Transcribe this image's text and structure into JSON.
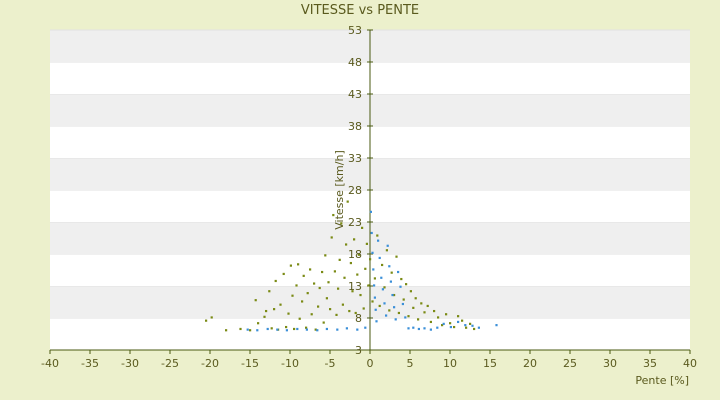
{
  "chart_data": {
    "type": "scatter",
    "title": "VITESSE vs PENTE",
    "xlabel": "Pente [%]",
    "ylabel": "Vitesse [km/h]",
    "xlim": [
      -40,
      40
    ],
    "ylim": [
      3,
      53
    ],
    "xticks": [
      "-40",
      "-35",
      "-30",
      "-25",
      "-20",
      "-15",
      "-10",
      "-5",
      "0",
      "5",
      "10",
      "15",
      "20",
      "25",
      "30",
      "35",
      "40"
    ],
    "yticks": [
      "3",
      "8",
      "13",
      "18",
      "23",
      "28",
      "33",
      "38",
      "43",
      "48",
      "53"
    ],
    "grid": "alternating horizontal bands",
    "colors": {
      "background": "#ecf0cc",
      "plot": "#ffffff",
      "band": "#efefef",
      "axis": "#4a5a10",
      "text": "#5a5a1e",
      "series_a": "#7a8a14",
      "series_b": "#3b8fd8"
    },
    "series": [
      {
        "color": "#7a8a14",
        "points": [
          [
            -20.5,
            7.6
          ],
          [
            -19.8,
            8.1
          ],
          [
            -18,
            6.1
          ],
          [
            -16.2,
            6.3
          ],
          [
            -15,
            6.1
          ],
          [
            -14.3,
            10.8
          ],
          [
            -14,
            7.2
          ],
          [
            -13.2,
            8.2
          ],
          [
            -13,
            9.1
          ],
          [
            -12.6,
            12.2
          ],
          [
            -12.3,
            6.4
          ],
          [
            -12,
            9.4
          ],
          [
            -11.8,
            13.8
          ],
          [
            -11.5,
            6.2
          ],
          [
            -11.2,
            10.1
          ],
          [
            -10.8,
            14.9
          ],
          [
            -10.5,
            6.6
          ],
          [
            -10.2,
            8.7
          ],
          [
            -9.9,
            16.2
          ],
          [
            -9.7,
            11.5
          ],
          [
            -9.5,
            6.3
          ],
          [
            -9.2,
            13.1
          ],
          [
            -9,
            16.4
          ],
          [
            -8.8,
            7.9
          ],
          [
            -8.5,
            10.6
          ],
          [
            -8.3,
            14.6
          ],
          [
            -8,
            6.5
          ],
          [
            -7.8,
            11.9
          ],
          [
            -7.5,
            15.6
          ],
          [
            -7.3,
            8.6
          ],
          [
            -7,
            13.4
          ],
          [
            -6.8,
            6.2
          ],
          [
            -6.5,
            9.8
          ],
          [
            -6.3,
            12.7
          ],
          [
            -6,
            15.2
          ],
          [
            -5.8,
            7.3
          ],
          [
            -5.6,
            17.8
          ],
          [
            -5.4,
            11.1
          ],
          [
            -5.2,
            13.6
          ],
          [
            -5,
            9.4
          ],
          [
            -4.8,
            20.6
          ],
          [
            -4.6,
            24.1
          ],
          [
            -4.4,
            15.3
          ],
          [
            -4.2,
            8.5
          ],
          [
            -4,
            12.6
          ],
          [
            -3.8,
            17.1
          ],
          [
            -3.6,
            22.8
          ],
          [
            -3.4,
            10.1
          ],
          [
            -3.2,
            14.3
          ],
          [
            -3,
            19.5
          ],
          [
            -2.8,
            26.2
          ],
          [
            -2.6,
            9.1
          ],
          [
            -2.4,
            16.6
          ],
          [
            -2.2,
            12.2
          ],
          [
            -2,
            20.3
          ],
          [
            -1.8,
            8.8
          ],
          [
            -1.6,
            14.8
          ],
          [
            -1.4,
            17.9
          ],
          [
            -1.2,
            11.6
          ],
          [
            -1,
            22.1
          ],
          [
            -0.8,
            9.5
          ],
          [
            -0.6,
            15.7
          ],
          [
            -0.4,
            19.6
          ],
          [
            -0.2,
            13.1
          ],
          [
            0,
            17.2
          ],
          [
            0.3,
            10.6
          ],
          [
            0.6,
            14.2
          ],
          [
            0.9,
            20.9
          ],
          [
            1.2,
            9.9
          ],
          [
            1.5,
            16.3
          ],
          [
            1.8,
            12.8
          ],
          [
            2.1,
            18.6
          ],
          [
            2.4,
            9.2
          ],
          [
            2.7,
            15.1
          ],
          [
            3,
            11.6
          ],
          [
            3.3,
            17.6
          ],
          [
            3.6,
            8.8
          ],
          [
            3.9,
            14.1
          ],
          [
            4.2,
            10.9
          ],
          [
            4.5,
            13.3
          ],
          [
            4.8,
            8.3
          ],
          [
            5.1,
            12.2
          ],
          [
            5.4,
            9.6
          ],
          [
            5.7,
            11.1
          ],
          [
            6,
            7.8
          ],
          [
            6.4,
            10.3
          ],
          [
            6.8,
            8.9
          ],
          [
            7.2,
            9.9
          ],
          [
            7.6,
            7.4
          ],
          [
            8,
            9.1
          ],
          [
            8.5,
            8.1
          ],
          [
            9,
            6.9
          ],
          [
            9.5,
            8.6
          ],
          [
            10,
            7.2
          ],
          [
            10.5,
            6.6
          ],
          [
            11,
            8.3
          ],
          [
            11.5,
            7.6
          ],
          [
            12,
            6.5
          ],
          [
            12.5,
            7.1
          ],
          [
            13,
            6.3
          ]
        ]
      },
      {
        "color": "#3b8fd8",
        "points": [
          [
            -15.3,
            6.2
          ],
          [
            -14.1,
            6.1
          ],
          [
            -12.8,
            6.3
          ],
          [
            -11.6,
            6.2
          ],
          [
            -10.4,
            6.1
          ],
          [
            -9.1,
            6.3
          ],
          [
            -7.9,
            6.2
          ],
          [
            -6.6,
            6.1
          ],
          [
            -5.4,
            6.3
          ],
          [
            -4.1,
            6.2
          ],
          [
            -2.9,
            6.4
          ],
          [
            -1.6,
            6.2
          ],
          [
            -0.6,
            6.5
          ],
          [
            0.1,
            24.6
          ],
          [
            0.2,
            21.3
          ],
          [
            0.3,
            18.2
          ],
          [
            0.4,
            15.6
          ],
          [
            0.5,
            13.1
          ],
          [
            0.6,
            11.2
          ],
          [
            0.7,
            9.3
          ],
          [
            0.8,
            7.5
          ],
          [
            1,
            20.1
          ],
          [
            1.2,
            17.4
          ],
          [
            1.4,
            14.3
          ],
          [
            1.6,
            12.5
          ],
          [
            1.8,
            10.3
          ],
          [
            2,
            8.4
          ],
          [
            2.2,
            19.3
          ],
          [
            2.4,
            16.1
          ],
          [
            2.6,
            13.7
          ],
          [
            2.8,
            11.6
          ],
          [
            3,
            9.7
          ],
          [
            3.2,
            7.8
          ],
          [
            3.5,
            15.2
          ],
          [
            3.8,
            12.9
          ],
          [
            4.1,
            10.2
          ],
          [
            4.4,
            8.1
          ],
          [
            4.8,
            6.4
          ],
          [
            5.4,
            6.5
          ],
          [
            6.1,
            6.3
          ],
          [
            6.8,
            6.4
          ],
          [
            7.6,
            6.2
          ],
          [
            8.4,
            6.5
          ],
          [
            9.2,
            7.1
          ],
          [
            10.1,
            6.6
          ],
          [
            11,
            7.4
          ],
          [
            11.9,
            6.9
          ],
          [
            12.8,
            6.8
          ],
          [
            13.6,
            6.5
          ],
          [
            15.8,
            6.9
          ]
        ]
      }
    ]
  }
}
